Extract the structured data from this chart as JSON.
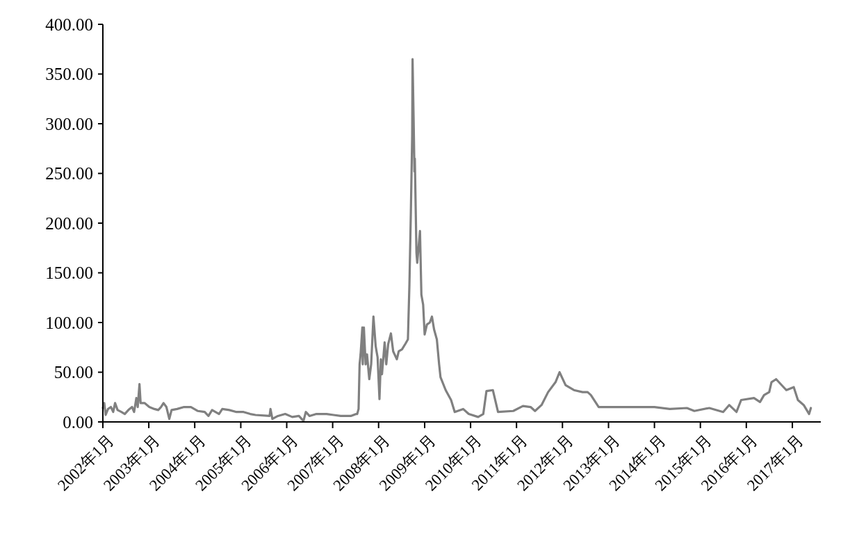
{
  "chart_data": {
    "type": "line",
    "x": [
      "2002-01-01",
      "2002-01-12",
      "2002-01-23",
      "2002-02-11",
      "2002-03-06",
      "2002-03-24",
      "2002-04-08",
      "2002-04-28",
      "2002-05-28",
      "2002-06-24",
      "2002-07-23",
      "2002-08-21",
      "2002-09-06",
      "2002-09-24",
      "2002-10-05",
      "2002-10-19",
      "2002-10-28",
      "2002-11-28",
      "2003-01-05",
      "2003-02-14",
      "2003-03-17",
      "2003-04-08",
      "2003-04-28",
      "2003-05-21",
      "2003-06-13",
      "2003-07-01",
      "2003-08-14",
      "2003-10-08",
      "2003-12-02",
      "2004-01-26",
      "2004-03-20",
      "2004-04-19",
      "2004-05-18",
      "2004-07-12",
      "2004-08-07",
      "2004-10-01",
      "2004-11-28",
      "2005-01-23",
      "2005-03-17",
      "2005-04-28",
      "2005-08-18",
      "2005-08-25",
      "2005-09-09",
      "2005-10-23",
      "2005-12-20",
      "2006-02-14",
      "2006-04-08",
      "2006-05-14",
      "2006-06-02",
      "2006-07-01",
      "2006-08-25",
      "2006-11-14",
      "2007-01-08",
      "2007-03-06",
      "2007-05-25",
      "2007-07-08",
      "2007-07-15",
      "2007-07-26",
      "2007-08-03",
      "2007-08-11",
      "2007-08-25",
      "2007-08-28",
      "2007-09-06",
      "2007-09-20",
      "2007-10-01",
      "2007-10-19",
      "2007-11-03",
      "2007-11-21",
      "2007-12-09",
      "2007-12-24",
      "2008-01-08",
      "2008-01-19",
      "2008-01-28",
      "2008-02-18",
      "2008-03-02",
      "2008-03-17",
      "2008-04-08",
      "2008-04-26",
      "2008-05-25",
      "2008-06-09",
      "2008-07-05",
      "2008-08-03",
      "2008-08-21",
      "2008-09-02",
      "2008-09-13",
      "2008-09-24",
      "2008-09-27",
      "2008-10-05",
      "2008-10-12",
      "2008-10-15",
      "2008-10-28",
      "2008-11-03",
      "2008-11-14",
      "2008-11-25",
      "2008-12-06",
      "2008-12-20",
      "2009-01-01",
      "2009-01-19",
      "2009-02-11",
      "2009-02-28",
      "2009-03-17",
      "2009-04-08",
      "2009-04-26",
      "2009-05-07",
      "2009-06-17",
      "2009-07-30",
      "2009-08-28",
      "2009-11-03",
      "2009-12-17",
      "2010-03-02",
      "2010-04-12",
      "2010-05-07",
      "2010-06-27",
      "2010-08-07",
      "2010-12-06",
      "2011-02-21",
      "2011-04-23",
      "2011-05-28",
      "2011-07-19",
      "2011-09-09",
      "2011-11-07",
      "2011-12-09",
      "2012-01-26",
      "2012-04-01",
      "2012-06-09",
      "2012-07-19",
      "2012-08-14",
      "2012-10-15",
      "2013-01-12",
      "2013-05-28",
      "2014-01-01",
      "2014-05-03",
      "2014-09-16",
      "2014-11-14",
      "2015-03-13",
      "2015-07-01",
      "2015-08-18",
      "2015-10-15",
      "2015-11-21",
      "2016-03-02",
      "2016-04-19",
      "2016-05-21",
      "2016-07-01",
      "2016-07-19",
      "2016-08-25",
      "2016-11-14",
      "2017-01-12",
      "2017-02-14",
      "2017-04-01",
      "2017-05-14",
      "2017-05-28"
    ],
    "series": [
      {
        "color": "#808080",
        "values": [
          14,
          19,
          7,
          13,
          15,
          10,
          19,
          12,
          10,
          8,
          12,
          15,
          10,
          24,
          15,
          38,
          19,
          19,
          15,
          13,
          12,
          15,
          19,
          15,
          3,
          12,
          13,
          15,
          15,
          11,
          10,
          6,
          12,
          8,
          13,
          12,
          10,
          10,
          8,
          7,
          6,
          13,
          3,
          6,
          8,
          5,
          6,
          1,
          10,
          6,
          8,
          8,
          7,
          6,
          6,
          8,
          8,
          13,
          58,
          68,
          95,
          58,
          95,
          58,
          68,
          43,
          58,
          106,
          76,
          65,
          23,
          63,
          48,
          80,
          58,
          78,
          89,
          71,
          63,
          71,
          73,
          79,
          83,
          138,
          208,
          288,
          365,
          307,
          252,
          265,
          170,
          160,
          176,
          192,
          128,
          118,
          88,
          98,
          100,
          106,
          93,
          83,
          58,
          45,
          32,
          22,
          10,
          13,
          8,
          5,
          8,
          31,
          32,
          10,
          11,
          16,
          15,
          11,
          17,
          30,
          40,
          50,
          37,
          32,
          30,
          30,
          27,
          15,
          15,
          15,
          15,
          13,
          14,
          11,
          14,
          10,
          17,
          10,
          22,
          24,
          20,
          27,
          30,
          40,
          43,
          32,
          35,
          22,
          17,
          8,
          14
        ]
      }
    ],
    "xlim": [
      "2002-01-01",
      "2017-08-15"
    ],
    "xticks": [
      {
        "value": "2002-01",
        "label": "2002年1月"
      },
      {
        "value": "2003-01",
        "label": "2003年1月"
      },
      {
        "value": "2004-01",
        "label": "2004年1月"
      },
      {
        "value": "2005-01",
        "label": "2005年1月"
      },
      {
        "value": "2006-01",
        "label": "2006年1月"
      },
      {
        "value": "2007-01",
        "label": "2007年1月"
      },
      {
        "value": "2008-01",
        "label": "2008年1月"
      },
      {
        "value": "2009-01",
        "label": "2009年1月"
      },
      {
        "value": "2010-01",
        "label": "2010年1月"
      },
      {
        "value": "2011-01",
        "label": "2011年1月"
      },
      {
        "value": "2012-01",
        "label": "2012年1月"
      },
      {
        "value": "2013-01",
        "label": "2013年1月"
      },
      {
        "value": "2014-01",
        "label": "2014年1月"
      },
      {
        "value": "2015-01",
        "label": "2015年1月"
      },
      {
        "value": "2016-01",
        "label": "2016年1月"
      },
      {
        "value": "2017-01",
        "label": "2017年1月"
      }
    ],
    "ylim": [
      0,
      400
    ],
    "yticks": [
      {
        "value": 0,
        "label": "0.00"
      },
      {
        "value": 50,
        "label": "50.00"
      },
      {
        "value": 100,
        "label": "100.00"
      },
      {
        "value": 150,
        "label": "150.00"
      },
      {
        "value": 200,
        "label": "200.00"
      },
      {
        "value": 250,
        "label": "250.00"
      },
      {
        "value": 300,
        "label": "300.00"
      },
      {
        "value": 350,
        "label": "350.00"
      },
      {
        "value": 400,
        "label": "400.00"
      }
    ]
  }
}
